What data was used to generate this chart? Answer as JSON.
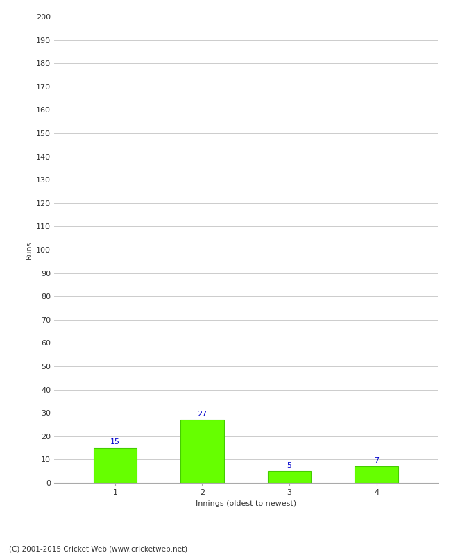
{
  "categories": [
    1,
    2,
    3,
    4
  ],
  "values": [
    15,
    27,
    5,
    7
  ],
  "bar_color": "#66ff00",
  "bar_edge_color": "#44cc00",
  "ylabel": "Runs",
  "xlabel": "Innings (oldest to newest)",
  "ylim": [
    0,
    200
  ],
  "yticks": [
    0,
    10,
    20,
    30,
    40,
    50,
    60,
    70,
    80,
    90,
    100,
    110,
    120,
    130,
    140,
    150,
    160,
    170,
    180,
    190,
    200
  ],
  "footer": "(C) 2001-2015 Cricket Web (www.cricketweb.net)",
  "value_label_color": "#0000cc",
  "background_color": "#ffffff",
  "grid_color": "#cccccc",
  "tick_label_color": "#333333"
}
